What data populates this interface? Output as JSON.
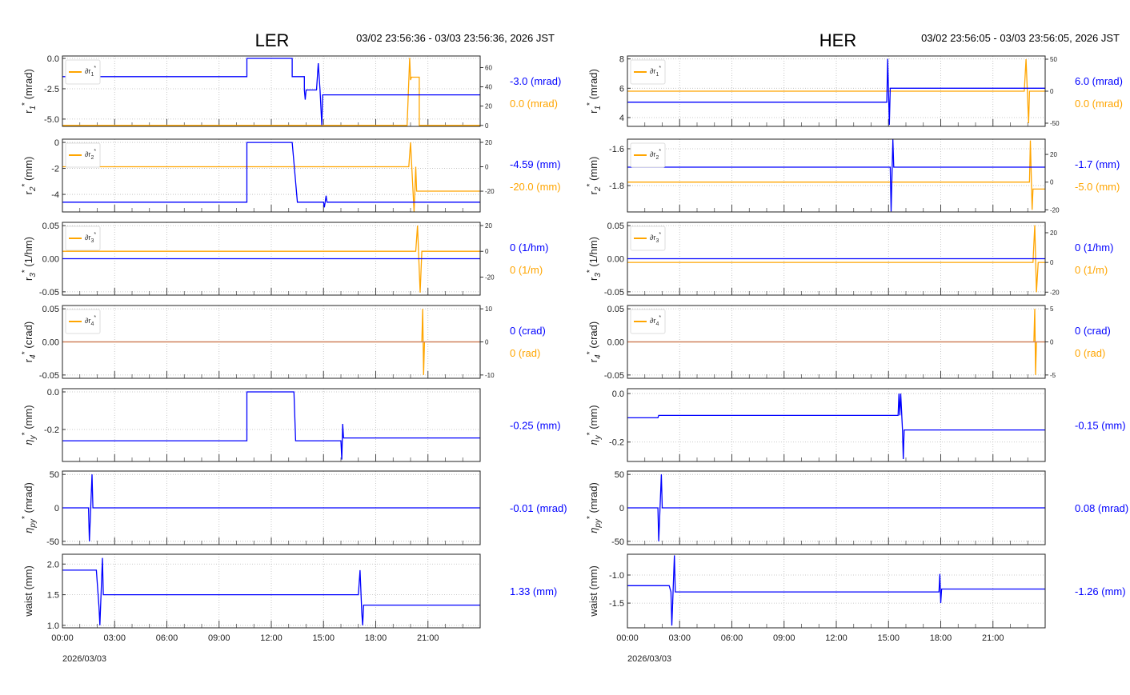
{
  "colors": {
    "primary": "#0000ff",
    "secondary": "#ffa500",
    "grid": "#bbbbbb",
    "zero_line": "#c87860"
  },
  "x_axis": {
    "unit": "hours",
    "lim": [
      0,
      24
    ],
    "ticks": [
      0,
      3,
      6,
      9,
      12,
      15,
      18,
      21
    ],
    "tick_labels": [
      "00:00",
      "03:00",
      "06:00",
      "09:00",
      "12:00",
      "15:00",
      "18:00",
      "21:00"
    ],
    "date_label": "2026/03/03"
  },
  "chart_data": [
    {
      "type": "line",
      "title": "LER",
      "range_label": "03/02 23:56:36 - 03/03 23:56:36, 2026 JST",
      "grid": true,
      "panels": [
        {
          "ylabel": {
            "sym": "r",
            "sub": "1",
            "unit": "(mrad)"
          },
          "ylim": [
            -5.6,
            0.2
          ],
          "yticks": [
            0,
            -2.5,
            -5
          ],
          "ytick_labels": [
            "0.0",
            "-2.5",
            "-5.0"
          ],
          "y2lim": [
            -1,
            72
          ],
          "y2ticks": [
            0,
            20,
            40,
            60
          ],
          "legend": {
            "sym": "∂r",
            "sub": "1"
          },
          "readouts": [
            "-3.0 (mrad)",
            "0.0 (mrad)"
          ],
          "primary": [
            [
              0,
              -1.5
            ],
            [
              10.6,
              -1.5
            ],
            [
              10.6,
              0
            ],
            [
              13.2,
              0
            ],
            [
              13.2,
              -1.5
            ],
            [
              13.9,
              -1.5
            ],
            [
              13.9,
              -2.6
            ],
            [
              13.95,
              -3.4
            ],
            [
              14.0,
              -2.6
            ],
            [
              14.6,
              -2.6
            ],
            [
              14.7,
              -0.4
            ],
            [
              14.8,
              -2.6
            ],
            [
              14.9,
              -5.5
            ],
            [
              14.95,
              -3.0
            ],
            [
              24,
              -3.0
            ]
          ],
          "secondary": [
            [
              0,
              0
            ],
            [
              19.8,
              0
            ],
            [
              19.95,
              70
            ],
            [
              20.0,
              47
            ],
            [
              20.05,
              50
            ],
            [
              20.5,
              50
            ],
            [
              20.5,
              0
            ],
            [
              24,
              0
            ]
          ]
        },
        {
          "ylabel": {
            "sym": "r",
            "sub": "2",
            "unit": "(mm)"
          },
          "ylim": [
            -5.35,
            0.25
          ],
          "yticks": [
            0,
            -2,
            -4
          ],
          "ytick_labels": [
            "0",
            "-2",
            "-4"
          ],
          "y2lim": [
            -37,
            22.6
          ],
          "y2ticks": [
            20,
            0,
            -20
          ],
          "legend": {
            "sym": "∂r",
            "sub": "2"
          },
          "readouts": [
            "-4.59 (mm)",
            "-20.0 (mm)"
          ],
          "primary": [
            [
              0,
              -4.6
            ],
            [
              10.6,
              -4.6
            ],
            [
              10.6,
              0
            ],
            [
              13.2,
              0
            ],
            [
              13.5,
              -4.6
            ],
            [
              15.0,
              -4.6
            ],
            [
              15.05,
              -5.0
            ],
            [
              15.15,
              -4.1
            ],
            [
              15.2,
              -4.6
            ],
            [
              24,
              -4.6
            ]
          ],
          "secondary": [
            [
              0,
              0
            ],
            [
              19.9,
              0
            ],
            [
              20.0,
              20
            ],
            [
              20.2,
              -37
            ],
            [
              20.25,
              -20
            ],
            [
              20.3,
              0
            ],
            [
              20.35,
              -20
            ],
            [
              24,
              -20
            ]
          ]
        },
        {
          "ylabel": {
            "sym": "r",
            "sub": "3",
            "unit": "(1/hm)"
          },
          "ylim": [
            -0.055,
            0.055
          ],
          "yticks": [
            0.05,
            0,
            -0.05
          ],
          "ytick_labels": [
            "0.05",
            "0.00",
            "-0.05"
          ],
          "y2lim": [
            -34,
            22.5
          ],
          "y2ticks": [
            20,
            0,
            -20
          ],
          "legend": {
            "sym": "∂r",
            "sub": "3"
          },
          "readouts": [
            "0 (1/hm)",
            "0 (1/m)"
          ],
          "primary": [
            [
              0,
              0
            ],
            [
              24,
              0
            ]
          ],
          "secondary": [
            [
              0,
              0
            ],
            [
              20.3,
              0
            ],
            [
              20.4,
              20
            ],
            [
              20.55,
              -32
            ],
            [
              20.65,
              0
            ],
            [
              24,
              0
            ]
          ]
        },
        {
          "ylabel": {
            "sym": "r",
            "sub": "4",
            "unit": "(crad)"
          },
          "ylim": [
            -0.055,
            0.055
          ],
          "yticks": [
            0.05,
            0,
            -0.05
          ],
          "ytick_labels": [
            "0.05",
            "0.00",
            "-0.05"
          ],
          "y2lim": [
            -11,
            11
          ],
          "y2ticks": [
            10,
            0,
            -10
          ],
          "legend": {
            "sym": "∂r",
            "sub": "4"
          },
          "readouts": [
            "0 (crad)",
            "0 (rad)"
          ],
          "primary": [
            [
              0,
              0
            ],
            [
              24,
              0
            ]
          ],
          "secondary": [
            [
              0,
              0
            ],
            [
              20.65,
              0
            ],
            [
              20.7,
              10
            ],
            [
              20.75,
              -10
            ],
            [
              20.8,
              0
            ],
            [
              24,
              0
            ]
          ]
        },
        {
          "ylabel": {
            "sym": "η",
            "sub": "y",
            "unit": "(mm)"
          },
          "ylim": [
            -0.37,
            0.017
          ],
          "yticks": [
            0,
            -0.2
          ],
          "ytick_labels": [
            "0.0",
            "-0.2"
          ],
          "readouts": [
            "-0.25 (mm)"
          ],
          "primary": [
            [
              0,
              -0.26
            ],
            [
              10.6,
              -0.26
            ],
            [
              10.6,
              0
            ],
            [
              13.3,
              0
            ],
            [
              13.4,
              -0.26
            ],
            [
              16.0,
              -0.26
            ],
            [
              16.05,
              -0.36
            ],
            [
              16.1,
              -0.17
            ],
            [
              16.15,
              -0.245
            ],
            [
              24,
              -0.245
            ]
          ]
        },
        {
          "ylabel": {
            "sym": "η",
            "sub": "py",
            "unit": "(mrad)"
          },
          "ylim": [
            -55,
            55
          ],
          "yticks": [
            50,
            0,
            -50
          ],
          "ytick_labels": [
            "50",
            "0",
            "-50"
          ],
          "readouts": [
            "-0.01 (mrad)"
          ],
          "primary": [
            [
              0,
              0
            ],
            [
              1.5,
              0
            ],
            [
              1.55,
              -50
            ],
            [
              1.7,
              50
            ],
            [
              1.75,
              0
            ],
            [
              24,
              0
            ]
          ]
        },
        {
          "ylabel": {
            "sym": "waist",
            "sub": "",
            "unit": "(mm)"
          },
          "ylim": [
            0.96,
            2.16
          ],
          "yticks": [
            2.0,
            1.5,
            1.0
          ],
          "ytick_labels": [
            "2.0",
            "1.5",
            "1.0"
          ],
          "readouts": [
            "1.33 (mm)"
          ],
          "primary": [
            [
              0,
              1.9
            ],
            [
              1.95,
              1.9
            ],
            [
              2.1,
              1.3
            ],
            [
              2.15,
              1.0
            ],
            [
              2.3,
              2.1
            ],
            [
              2.35,
              1.5
            ],
            [
              17.0,
              1.5
            ],
            [
              17.1,
              1.9
            ],
            [
              17.2,
              1.2
            ],
            [
              17.25,
              1.0
            ],
            [
              17.3,
              1.33
            ],
            [
              24,
              1.33
            ]
          ]
        }
      ]
    },
    {
      "type": "line",
      "title": "HER",
      "range_label": "03/02 23:56:05 - 03/03 23:56:05, 2026 JST",
      "grid": true,
      "panels": [
        {
          "ylabel": {
            "sym": "r",
            "sub": "1",
            "unit": "(mrad)"
          },
          "ylim": [
            3.4,
            8.2
          ],
          "yticks": [
            8,
            6,
            4
          ],
          "ytick_labels": [
            "8",
            "6",
            "4"
          ],
          "y2lim": [
            -55,
            55
          ],
          "y2ticks": [
            50,
            0,
            -50
          ],
          "legend": {
            "sym": "∂r",
            "sub": "1"
          },
          "readouts": [
            "6.0 (mrad)",
            "0.0 (mrad)"
          ],
          "primary": [
            [
              0,
              5.05
            ],
            [
              14.9,
              5.05
            ],
            [
              14.95,
              8
            ],
            [
              15.05,
              3.5
            ],
            [
              15.1,
              6.0
            ],
            [
              24,
              6.0
            ]
          ],
          "secondary": [
            [
              0,
              0
            ],
            [
              22.8,
              0
            ],
            [
              22.9,
              50
            ],
            [
              23.05,
              -50
            ],
            [
              23.1,
              0
            ],
            [
              24,
              0
            ]
          ]
        },
        {
          "ylabel": {
            "sym": "r",
            "sub": "2",
            "unit": "(mm)"
          },
          "ylim": [
            -1.943,
            -1.548
          ],
          "yticks": [
            -1.6,
            -1.8
          ],
          "ytick_labels": [
            "-1.6",
            "-1.8"
          ],
          "y2lim": [
            -21.5,
            31
          ],
          "y2ticks": [
            20,
            0,
            -20
          ],
          "legend": {
            "sym": "∂r",
            "sub": "2"
          },
          "readouts": [
            "-1.7 (mm)",
            "-5.0 (mm)"
          ],
          "primary": [
            [
              0,
              -1.7
            ],
            [
              15.1,
              -1.7
            ],
            [
              15.15,
              -1.94
            ],
            [
              15.25,
              -1.55
            ],
            [
              15.3,
              -1.7
            ],
            [
              24,
              -1.7
            ]
          ],
          "secondary": [
            [
              0,
              0
            ],
            [
              23.1,
              0
            ],
            [
              23.15,
              30
            ],
            [
              23.25,
              -20
            ],
            [
              23.3,
              -5
            ],
            [
              24,
              -5
            ]
          ]
        },
        {
          "ylabel": {
            "sym": "r",
            "sub": "3",
            "unit": "(1/hm)"
          },
          "ylim": [
            -0.055,
            0.055
          ],
          "yticks": [
            0.05,
            0,
            -0.05
          ],
          "ytick_labels": [
            "0.05",
            "0.00",
            "-0.05"
          ],
          "y2lim": [
            -22,
            27
          ],
          "y2ticks": [
            20,
            0,
            -20
          ],
          "legend": {
            "sym": "∂r",
            "sub": "3"
          },
          "readouts": [
            "0 (1/hm)",
            "0 (1/m)"
          ],
          "primary": [
            [
              0,
              0
            ],
            [
              24,
              0
            ]
          ],
          "secondary": [
            [
              0,
              0
            ],
            [
              23.3,
              0
            ],
            [
              23.4,
              25
            ],
            [
              23.5,
              -20
            ],
            [
              23.6,
              0
            ],
            [
              24,
              0
            ]
          ]
        },
        {
          "ylabel": {
            "sym": "r",
            "sub": "4",
            "unit": "(crad)"
          },
          "ylim": [
            -0.055,
            0.055
          ],
          "yticks": [
            0.05,
            0,
            -0.05
          ],
          "ytick_labels": [
            "0.05",
            "0.00",
            "-0.05"
          ],
          "y2lim": [
            -5.5,
            5.5
          ],
          "y2ticks": [
            5,
            0,
            -5
          ],
          "legend": {
            "sym": "∂r",
            "sub": "4"
          },
          "readouts": [
            "0 (crad)",
            "0 (rad)"
          ],
          "primary": [
            [
              0,
              0
            ],
            [
              24,
              0
            ]
          ],
          "secondary": [
            [
              0,
              0
            ],
            [
              23.35,
              0
            ],
            [
              23.4,
              5
            ],
            [
              23.45,
              -5
            ],
            [
              23.5,
              0
            ],
            [
              24,
              0
            ]
          ]
        },
        {
          "ylabel": {
            "sym": "η",
            "sub": "y",
            "unit": "(mm)"
          },
          "ylim": [
            -0.28,
            0.02
          ],
          "yticks": [
            0,
            -0.2
          ],
          "ytick_labels": [
            "0.0",
            "-0.2"
          ],
          "readouts": [
            "-0.15 (mm)"
          ],
          "primary": [
            [
              0,
              -0.1
            ],
            [
              1.75,
              -0.1
            ],
            [
              1.8,
              -0.09
            ],
            [
              15.55,
              -0.09
            ],
            [
              15.6,
              0.0
            ],
            [
              15.65,
              -0.09
            ],
            [
              15.7,
              0.0
            ],
            [
              15.8,
              -0.15
            ],
            [
              15.85,
              -0.27
            ],
            [
              15.9,
              -0.15
            ],
            [
              24,
              -0.15
            ]
          ]
        },
        {
          "ylabel": {
            "sym": "η",
            "sub": "py",
            "unit": "(mrad)"
          },
          "ylim": [
            -55,
            55
          ],
          "yticks": [
            50,
            0,
            -50
          ],
          "ytick_labels": [
            "50",
            "0",
            "-50"
          ],
          "readouts": [
            "0.08 (mrad)"
          ],
          "primary": [
            [
              0,
              0
            ],
            [
              1.75,
              0
            ],
            [
              1.8,
              -50
            ],
            [
              1.95,
              50
            ],
            [
              2.0,
              0
            ],
            [
              24,
              0
            ]
          ]
        },
        {
          "ylabel": {
            "sym": "waist",
            "sub": "",
            "unit": "(mm)"
          },
          "ylim": [
            -1.94,
            -0.63
          ],
          "yticks": [
            -1.0,
            -1.5
          ],
          "ytick_labels": [
            "-1.0",
            "-1.5"
          ],
          "readouts": [
            "-1.26 (mm)"
          ],
          "primary": [
            [
              0,
              -1.19
            ],
            [
              2.4,
              -1.19
            ],
            [
              2.5,
              -1.3
            ],
            [
              2.55,
              -1.9
            ],
            [
              2.7,
              -0.65
            ],
            [
              2.75,
              -1.3
            ],
            [
              17.9,
              -1.3
            ],
            [
              17.95,
              -0.98
            ],
            [
              18.0,
              -1.5
            ],
            [
              18.05,
              -1.25
            ],
            [
              24,
              -1.25
            ]
          ]
        }
      ]
    }
  ]
}
